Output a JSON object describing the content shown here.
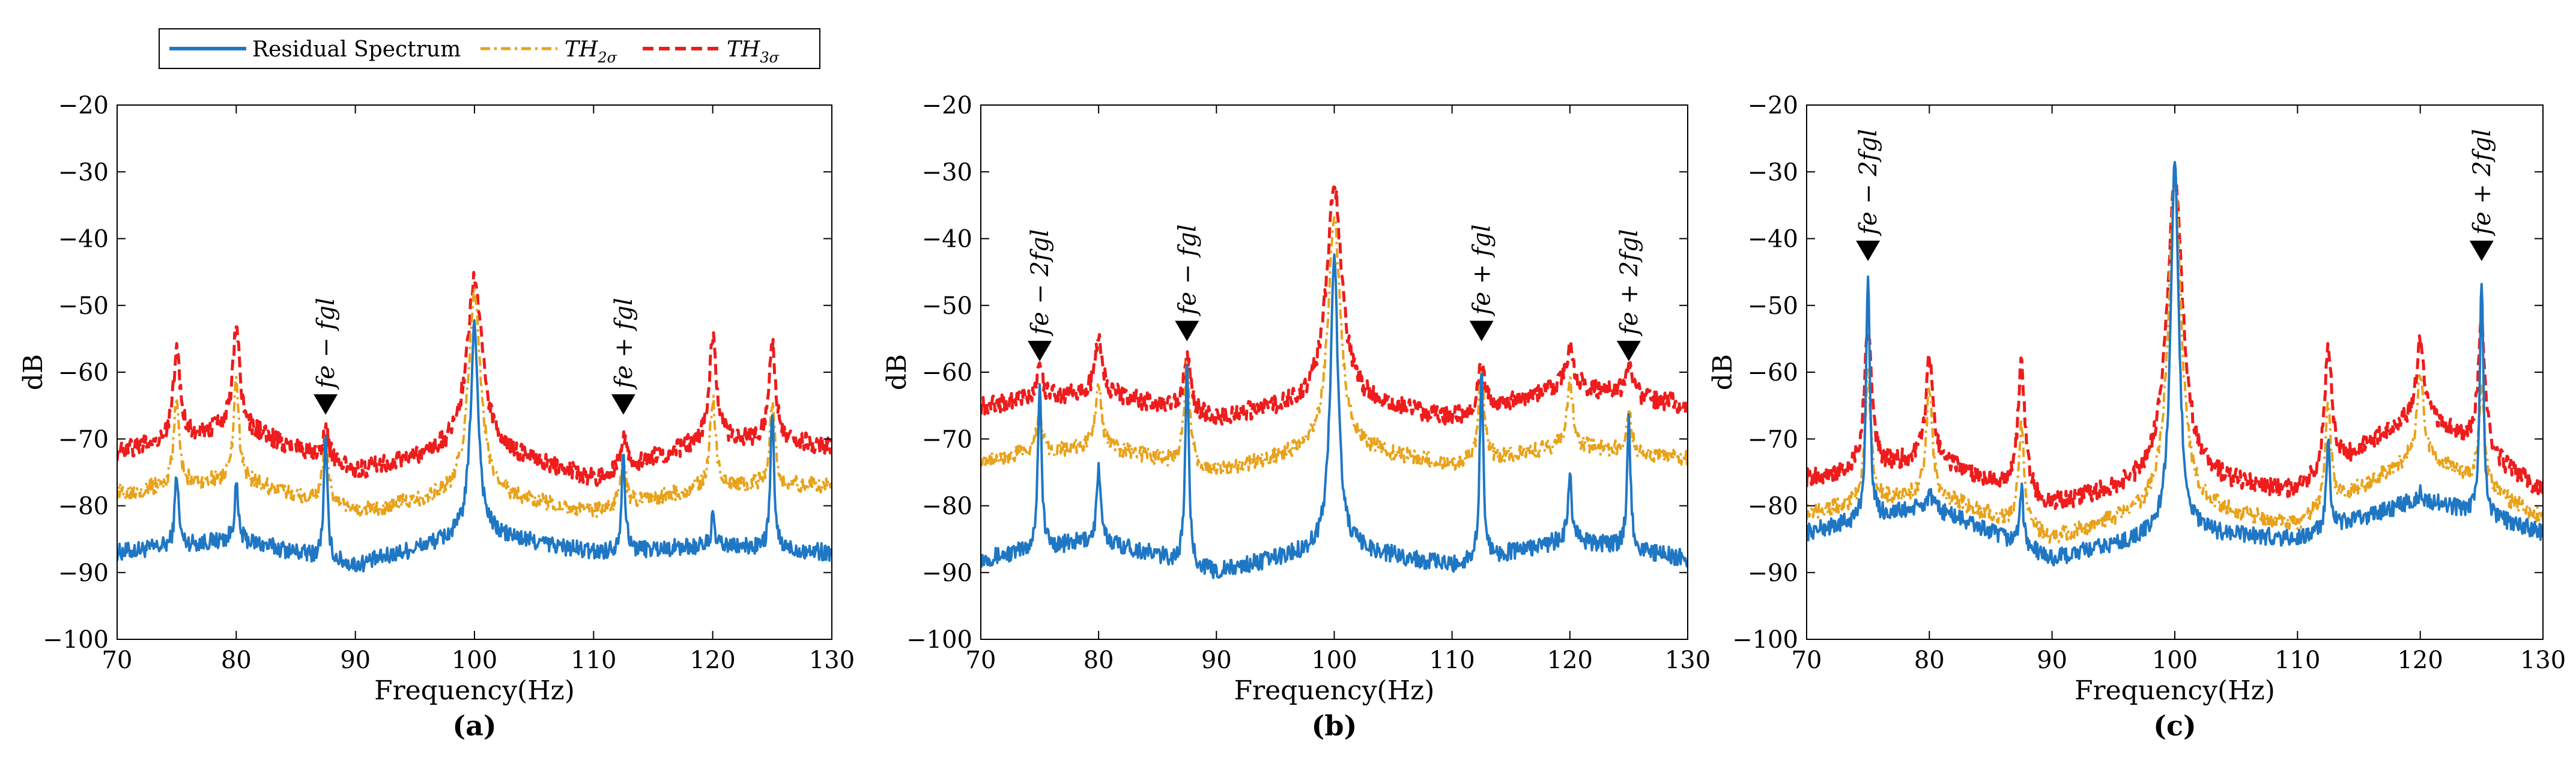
{
  "legend": {
    "residual": "Residual Spectrum",
    "th2": "TH",
    "th2_sub": "2σ",
    "th3": "TH",
    "th3_sub": "3σ"
  },
  "colors": {
    "residual": "#1f77c4",
    "th2": "#e8a21a",
    "th3": "#ee1c1c"
  },
  "chart_data": [
    {
      "type": "line",
      "panel_label": "(a)",
      "xlabel": "Frequency(Hz)",
      "ylabel": "dB",
      "xlim": [
        70,
        130
      ],
      "ylim": [
        -100,
        -20
      ],
      "xticks": [
        70,
        80,
        90,
        100,
        110,
        120,
        130
      ],
      "yticks": [
        -20,
        -30,
        -40,
        -50,
        -60,
        -70,
        -80,
        -90,
        -100
      ],
      "series": [
        {
          "name": "Residual Spectrum",
          "baseline": [
            [
              70,
              -87
            ],
            [
              80,
              -85
            ],
            [
              90,
              -89
            ],
            [
              100,
              -84
            ],
            [
              110,
              -87
            ],
            [
              120,
              -86
            ],
            [
              130,
              -87
            ]
          ],
          "peaks": [
            [
              75,
              -75
            ],
            [
              80,
              -77
            ],
            [
              87.5,
              -70
            ],
            [
              100,
              -53
            ],
            [
              112.5,
              -72
            ],
            [
              120,
              -82
            ],
            [
              125,
              -66
            ]
          ]
        },
        {
          "name": "TH2σ",
          "baseline": [
            [
              70,
              -78
            ],
            [
              80,
              -76
            ],
            [
              90,
              -81
            ],
            [
              100,
              -78
            ],
            [
              110,
              -81
            ],
            [
              120,
              -77
            ],
            [
              130,
              -77
            ]
          ],
          "peaks": [
            [
              75,
              -64
            ],
            [
              80,
              -62
            ],
            [
              87.5,
              -70
            ],
            [
              100,
              -48
            ],
            [
              112.5,
              -74
            ],
            [
              120,
              -64
            ],
            [
              125,
              -65
            ]
          ]
        },
        {
          "name": "TH3σ",
          "baseline": [
            [
              70,
              -72
            ],
            [
              80,
              -68
            ],
            [
              90,
              -75
            ],
            [
              100,
              -71
            ],
            [
              110,
              -76
            ],
            [
              120,
              -70
            ],
            [
              130,
              -71
            ]
          ],
          "peaks": [
            [
              75,
              -57
            ],
            [
              80,
              -53
            ],
            [
              87.5,
              -69
            ],
            [
              100,
              -46
            ],
            [
              112.5,
              -70
            ],
            [
              120,
              -55
            ],
            [
              125,
              -56
            ]
          ]
        }
      ],
      "annotations": [
        {
          "text": "fe − fgl",
          "x": 87.5,
          "y": -66
        },
        {
          "text": "fe + fgl",
          "x": 112.5,
          "y": -66
        }
      ]
    },
    {
      "type": "line",
      "panel_label": "(b)",
      "xlabel": "Frequency(Hz)",
      "ylabel": "dB",
      "xlim": [
        70,
        130
      ],
      "ylim": [
        -100,
        -20
      ],
      "xticks": [
        70,
        80,
        90,
        100,
        110,
        120,
        130
      ],
      "yticks": [
        -20,
        -30,
        -40,
        -50,
        -60,
        -70,
        -80,
        -90,
        -100
      ],
      "series": [
        {
          "name": "Residual Spectrum",
          "baseline": [
            [
              70,
              -88
            ],
            [
              80,
              -85
            ],
            [
              90,
              -90
            ],
            [
              100,
              -86
            ],
            [
              110,
              -89
            ],
            [
              120,
              -85
            ],
            [
              130,
              -88
            ]
          ],
          "peaks": [
            [
              75,
              -61
            ],
            [
              80,
              -74
            ],
            [
              87.5,
              -59
            ],
            [
              100,
              -43
            ],
            [
              112.5,
              -60
            ],
            [
              120,
              -75
            ],
            [
              125,
              -67
            ]
          ]
        },
        {
          "name": "TH2σ",
          "baseline": [
            [
              70,
              -73
            ],
            [
              80,
              -71
            ],
            [
              90,
              -75
            ],
            [
              100,
              -71
            ],
            [
              110,
              -74
            ],
            [
              120,
              -71
            ],
            [
              130,
              -73
            ]
          ],
          "peaks": [
            [
              75,
              -66
            ],
            [
              80,
              -61
            ],
            [
              87.5,
              -59
            ],
            [
              100,
              -37
            ],
            [
              112.5,
              -60
            ],
            [
              120,
              -61
            ],
            [
              125,
              -66
            ]
          ]
        },
        {
          "name": "TH3σ",
          "baseline": [
            [
              70,
              -65
            ],
            [
              80,
              -63
            ],
            [
              90,
              -67
            ],
            [
              100,
              -64
            ],
            [
              110,
              -67
            ],
            [
              120,
              -62
            ],
            [
              130,
              -65
            ]
          ],
          "peaks": [
            [
              75,
              -60
            ],
            [
              80,
              -55
            ],
            [
              87.5,
              -58
            ],
            [
              100,
              -32
            ],
            [
              112.5,
              -59
            ],
            [
              120,
              -56
            ],
            [
              125,
              -59
            ]
          ]
        }
      ],
      "annotations": [
        {
          "text": "fe − 2fgl",
          "x": 75,
          "y": -58
        },
        {
          "text": "fe − fgl",
          "x": 87.5,
          "y": -55
        },
        {
          "text": "fe + fgl",
          "x": 112.5,
          "y": -55
        },
        {
          "text": "fe + 2fgl",
          "x": 125,
          "y": -58
        }
      ]
    },
    {
      "type": "line",
      "panel_label": "(c)",
      "xlabel": "Frequency(Hz)",
      "ylabel": "dB",
      "xlim": [
        70,
        130
      ],
      "ylim": [
        -100,
        -20
      ],
      "xticks": [
        70,
        80,
        90,
        100,
        110,
        120,
        130
      ],
      "yticks": [
        -20,
        -30,
        -40,
        -50,
        -60,
        -70,
        -80,
        -90,
        -100
      ],
      "series": [
        {
          "name": "Residual Spectrum",
          "baseline": [
            [
              70,
              -84
            ],
            [
              80,
              -80
            ],
            [
              90,
              -88
            ],
            [
              100,
              -84
            ],
            [
              110,
              -85
            ],
            [
              120,
              -79
            ],
            [
              130,
              -84
            ]
          ],
          "peaks": [
            [
              75,
              -45
            ],
            [
              80,
              -78
            ],
            [
              87.5,
              -77
            ],
            [
              100,
              -29
            ],
            [
              112.5,
              -71
            ],
            [
              120,
              -78
            ],
            [
              125,
              -46
            ]
          ]
        },
        {
          "name": "TH2σ",
          "baseline": [
            [
              70,
              -81
            ],
            [
              80,
              -78
            ],
            [
              90,
              -85
            ],
            [
              100,
              -80
            ],
            [
              110,
              -83
            ],
            [
              120,
              -72
            ],
            [
              130,
              -82
            ]
          ],
          "peaks": [
            [
              75,
              -60
            ],
            [
              80,
              -62
            ],
            [
              87.5,
              -68
            ],
            [
              100,
              -31
            ],
            [
              112.5,
              -65
            ],
            [
              120,
              -60
            ],
            [
              125,
              -62
            ]
          ]
        },
        {
          "name": "TH3σ",
          "baseline": [
            [
              70,
              -76
            ],
            [
              80,
              -73
            ],
            [
              90,
              -80
            ],
            [
              100,
              -76
            ],
            [
              110,
              -78
            ],
            [
              120,
              -66
            ],
            [
              130,
              -78
            ]
          ],
          "peaks": [
            [
              75,
              -53
            ],
            [
              80,
              -58
            ],
            [
              87.5,
              -59
            ],
            [
              100,
              -31
            ],
            [
              112.5,
              -56
            ],
            [
              120,
              -55
            ],
            [
              125,
              -53
            ]
          ]
        }
      ],
      "annotations": [
        {
          "text": "fe − 2fgl",
          "x": 75,
          "y": -43
        },
        {
          "text": "fe + 2fgl",
          "x": 125,
          "y": -43
        }
      ]
    }
  ]
}
